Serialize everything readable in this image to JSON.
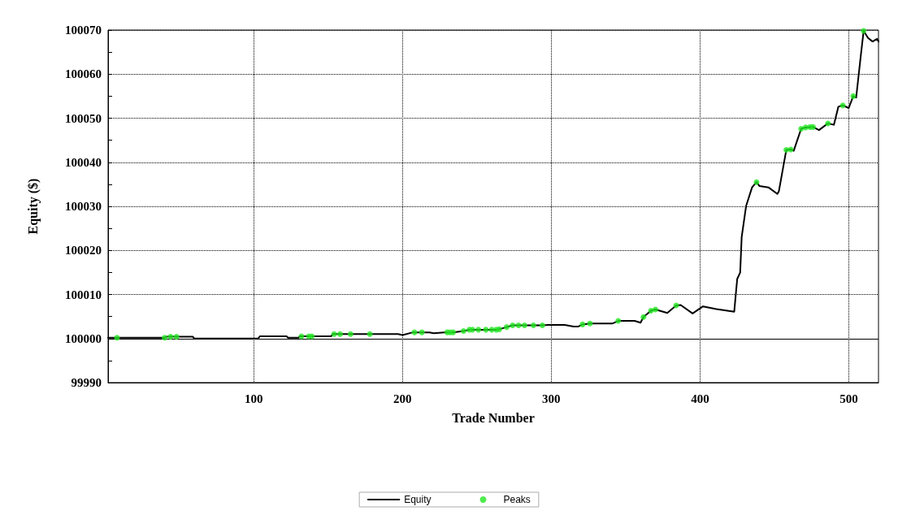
{
  "chart_data": {
    "type": "line",
    "xlabel": "Trade Number",
    "ylabel": "Equity ($)",
    "xlim": [
      2,
      520
    ],
    "xticks": [
      100,
      200,
      300,
      400,
      500
    ],
    "ylim": [
      99990,
      100070
    ],
    "yticks": [
      99990,
      {
        "value": 99995,
        "label": null
      },
      100000,
      {
        "value": 100005,
        "label": null
      },
      100010,
      {
        "value": 100015,
        "label": null
      },
      100020,
      {
        "value": 100025,
        "label": null
      },
      100030,
      {
        "value": 100035,
        "label": null
      },
      100040,
      {
        "value": 100045,
        "label": null
      },
      100050,
      {
        "value": 100055,
        "label": null
      },
      100060,
      {
        "value": 100065,
        "label": null
      },
      100070
    ],
    "grid": true,
    "legend": "bottom",
    "line_style": "solid",
    "ref_lines": [
      {
        "axis": "y",
        "value": 100000,
        "label": null,
        "color": "#000000"
      }
    ],
    "series": [
      {
        "name": "Equity",
        "color": "#000000",
        "marker": "none",
        "x": [
          2,
          40,
          41,
          59,
          60,
          103,
          104,
          122,
          123,
          130,
          131,
          152,
          153,
          197,
          200,
          207,
          218,
          221,
          228,
          234,
          241,
          245,
          263,
          265,
          270,
          274,
          294,
          298,
          309,
          315,
          318,
          321,
          326,
          341,
          345,
          356,
          360,
          362,
          367,
          370,
          378,
          384,
          387,
          395,
          402,
          411,
          423,
          425,
          427,
          428,
          431,
          435,
          438,
          440,
          446,
          452,
          453,
          458,
          461,
          463,
          468,
          471,
          476,
          480,
          486,
          490,
          493,
          496,
          500,
          503,
          505,
          508,
          510,
          513,
          516,
          519,
          520
        ],
        "values": [
          100000.2,
          100000.2,
          100000.4,
          100000.4,
          100000.0,
          100000.0,
          100000.5,
          100000.5,
          100000.2,
          100000.2,
          100000.5,
          100000.5,
          100001.0,
          100001.0,
          100000.8,
          100001.4,
          100001.4,
          100001.2,
          100001.4,
          100001.4,
          100001.7,
          100002.0,
          100002.0,
          100002.1,
          100002.6,
          100003.0,
          100003.0,
          100003.1,
          100003.1,
          100002.7,
          100002.7,
          100003.2,
          100003.4,
          100003.4,
          100004.0,
          100004.0,
          100003.6,
          100004.9,
          100006.3,
          100006.6,
          100005.8,
          100007.5,
          100007.6,
          100005.7,
          100007.3,
          100006.7,
          100006.1,
          100013.5,
          100015.0,
          100023.0,
          100030.1,
          100034.3,
          100035.5,
          100034.6,
          100034.3,
          100032.8,
          100033.4,
          100042.8,
          100042.9,
          100042.6,
          100047.6,
          100047.9,
          100048.0,
          100047.3,
          100048.8,
          100048.5,
          100052.6,
          100052.9,
          100052.3,
          100055.0,
          100054.7,
          100063.9,
          100069.8,
          100068.2,
          100067.4,
          100068.0,
          100067.4
        ]
      },
      {
        "name": "Peaks",
        "type": "scatter",
        "color": "#22e622",
        "marker": "circle",
        "x": [
          8,
          40,
          44,
          48,
          132,
          137,
          139,
          154,
          158,
          165,
          178,
          208,
          213,
          230,
          232,
          234,
          241,
          245,
          247,
          251,
          256,
          260,
          263,
          265,
          270,
          274,
          278,
          282,
          288,
          294,
          321,
          326,
          345,
          362,
          367,
          370,
          384,
          438,
          458,
          461,
          468,
          471,
          474,
          476,
          486,
          496,
          503,
          510
        ],
        "values": [
          100000.2,
          100000.2,
          100000.4,
          100000.4,
          100000.5,
          100000.5,
          100000.5,
          100001.0,
          100001.0,
          100001.0,
          100001.0,
          100001.4,
          100001.4,
          100001.4,
          100001.4,
          100001.4,
          100001.7,
          100002.0,
          100002.0,
          100002.0,
          100002.0,
          100002.0,
          100002.0,
          100002.1,
          100002.6,
          100003.0,
          100003.0,
          100003.0,
          100003.0,
          100003.0,
          100003.2,
          100003.4,
          100004.0,
          100004.9,
          100006.3,
          100006.6,
          100007.5,
          100035.5,
          100042.8,
          100042.9,
          100047.6,
          100047.9,
          100048.0,
          100048.0,
          100048.8,
          100052.9,
          100055.0,
          100069.8
        ]
      }
    ]
  }
}
